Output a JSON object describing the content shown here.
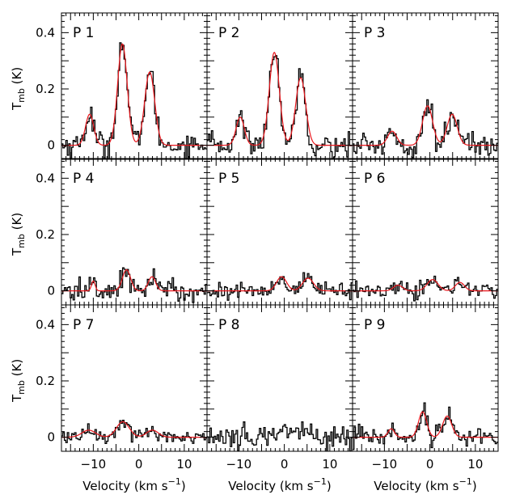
{
  "figure": {
    "xlabel": "Velocity (km s",
    "xlabel_sup": "−1",
    "xlabel_close": ")",
    "ylabel_main": "T",
    "ylabel_sub": "mb",
    "ylabel_unit": " (K)"
  },
  "chart_data": {
    "type": "line",
    "layout": "3x3 grid of spectra, shared axes",
    "xlim": [
      -17,
      15
    ],
    "ylim": [
      -0.05,
      0.47
    ],
    "xticks": [
      -10,
      0,
      10
    ],
    "yticks": [
      0,
      0.2,
      0.4
    ],
    "xtick_labels": [
      "−10",
      "0",
      "10"
    ],
    "ytick_labels": [
      "0",
      "0.2",
      "0.4"
    ],
    "series_style": {
      "observed": "#000000",
      "fit": "#e8161c"
    },
    "panels": [
      {
        "label": "P 1",
        "has_fit": true,
        "noise": 0.022,
        "components": [
          {
            "v": -10.8,
            "amp": 0.11,
            "sigma": 0.9
          },
          {
            "v": -3.6,
            "amp": 0.36,
            "sigma": 1.05
          },
          {
            "v": 2.4,
            "amp": 0.26,
            "sigma": 1.1
          }
        ]
      },
      {
        "label": "P 2",
        "has_fit": true,
        "noise": 0.022,
        "components": [
          {
            "v": -9.7,
            "amp": 0.1,
            "sigma": 0.9
          },
          {
            "v": -2.2,
            "amp": 0.33,
            "sigma": 1.1
          },
          {
            "v": 3.6,
            "amp": 0.24,
            "sigma": 1.1
          }
        ]
      },
      {
        "label": "P 3",
        "has_fit": true,
        "noise": 0.022,
        "components": [
          {
            "v": -8.3,
            "amp": 0.05,
            "sigma": 1.0
          },
          {
            "v": -0.5,
            "amp": 0.14,
            "sigma": 1.1
          },
          {
            "v": 4.9,
            "amp": 0.11,
            "sigma": 1.1
          }
        ]
      },
      {
        "label": "P 4",
        "has_fit": true,
        "noise": 0.02,
        "components": [
          {
            "v": -10.0,
            "amp": 0.035,
            "sigma": 0.4
          },
          {
            "v": -2.7,
            "amp": 0.075,
            "sigma": 0.9
          },
          {
            "v": 2.9,
            "amp": 0.05,
            "sigma": 0.8
          }
        ]
      },
      {
        "label": "P 5",
        "has_fit": true,
        "noise": 0.015,
        "components": [
          {
            "v": -0.6,
            "amp": 0.05,
            "sigma": 1.1
          },
          {
            "v": 5.2,
            "amp": 0.045,
            "sigma": 1.2
          }
        ]
      },
      {
        "label": "P 6",
        "has_fit": true,
        "noise": 0.015,
        "components": [
          {
            "v": -7.0,
            "amp": 0.02,
            "sigma": 1.0
          },
          {
            "v": 0.6,
            "amp": 0.04,
            "sigma": 1.2
          },
          {
            "v": 6.6,
            "amp": 0.03,
            "sigma": 1.0
          }
        ]
      },
      {
        "label": "P 7",
        "has_fit": true,
        "noise": 0.013,
        "components": [
          {
            "v": -11.0,
            "amp": 0.025,
            "sigma": 1.5
          },
          {
            "v": -3.5,
            "amp": 0.055,
            "sigma": 1.4
          },
          {
            "v": 3.0,
            "amp": 0.025,
            "sigma": 1.3
          }
        ]
      },
      {
        "label": "P 8",
        "has_fit": false,
        "noise": 0.022,
        "components": [
          {
            "v": 0.0,
            "amp": 0.03,
            "sigma": 2.2
          }
        ]
      },
      {
        "label": "P 9",
        "has_fit": true,
        "noise": 0.018,
        "components": [
          {
            "v": -8.5,
            "amp": 0.03,
            "sigma": 0.7
          },
          {
            "v": -1.6,
            "amp": 0.09,
            "sigma": 0.9
          },
          {
            "v": 3.8,
            "amp": 0.075,
            "sigma": 1.0
          }
        ]
      }
    ]
  }
}
